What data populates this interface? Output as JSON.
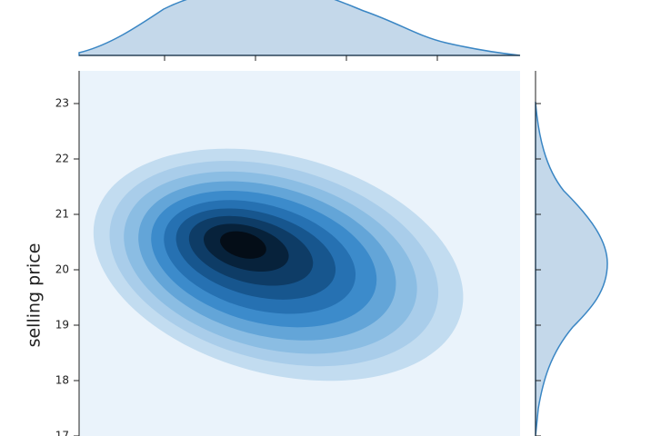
{
  "chart_data": {
    "type": "kde",
    "y_label": "selling price",
    "ylim": [
      16.5,
      23.6
    ],
    "yticks": [
      17,
      18,
      19,
      20,
      21,
      22,
      23
    ]
  }
}
